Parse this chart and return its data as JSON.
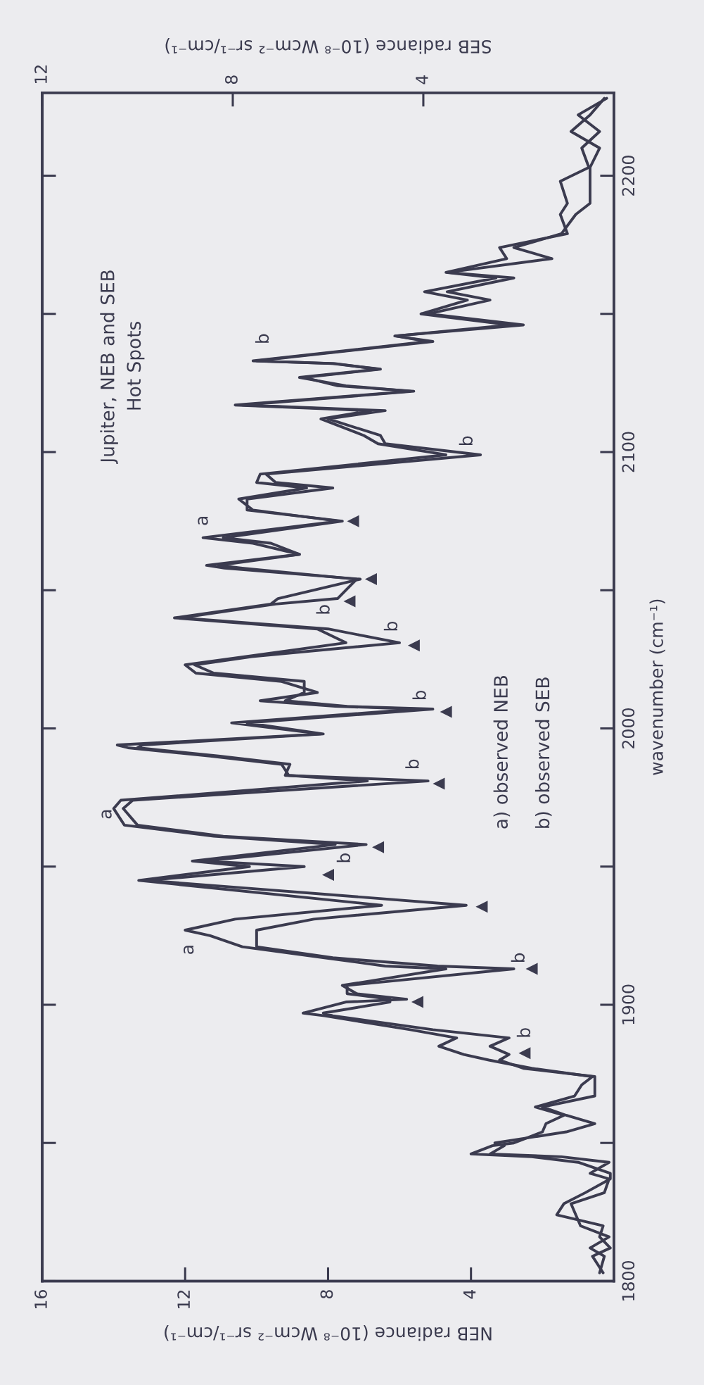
{
  "chart_data": {
    "type": "line",
    "orientation": "horizontal",
    "title": "Jupiter, NEB and SEB\nHot Spots",
    "xlabel": "NEB radiance (10⁻⁸ Wcm⁻² sr⁻¹/cm⁻¹)",
    "x2label": "SEB radiance (10⁻⁸ Wcm⁻² sr⁻¹/cm⁻¹)",
    "ylabel": "wavenumber (cm⁻¹)",
    "xlim": [
      16,
      0
    ],
    "xticks": [
      16,
      12,
      8,
      4
    ],
    "x2lim": [
      12,
      0
    ],
    "x2ticks": [
      12,
      8,
      4
    ],
    "ylim": [
      1800,
      2230
    ],
    "yticks": [
      1800,
      1900,
      2000,
      2100,
      2200
    ],
    "x": [
      1803,
      1809,
      1812,
      1816,
      1820,
      1824,
      1828,
      1832,
      1837,
      1839,
      1843,
      1845,
      1846,
      1849,
      1850,
      1854,
      1857,
      1860,
      1863,
      1867,
      1871,
      1874,
      1877,
      1880,
      1882,
      1885,
      1888,
      1891,
      1896,
      1897,
      1901,
      1902,
      1904,
      1907,
      1913,
      1914,
      1917,
      1921,
      1925,
      1927,
      1931,
      1936,
      1945,
      1950,
      1952,
      1958,
      1961,
      1965,
      1971,
      1974,
      1981,
      1983,
      1987,
      1990,
      1993,
      1994,
      1998,
      2002,
      2007,
      2008,
      2010,
      2013,
      2017,
      2020,
      2023,
      2026,
      2031,
      2036,
      2040,
      2045,
      2047,
      2054,
      2058,
      2059,
      2063,
      2067,
      2069,
      2075,
      2079,
      2083,
      2087,
      2089,
      2092,
      2099,
      2103,
      2106,
      2112,
      2115,
      2117,
      2122,
      2124,
      2127,
      2130,
      2132,
      2133,
      2140,
      2142,
      2146,
      2150,
      2155,
      2158,
      2163,
      2165,
      2170,
      2174,
      2179,
      2186,
      2190,
      2198,
      2203,
      2210,
      2216,
      2222,
      2228
    ],
    "series": [
      {
        "color": "#3b3b4f",
        "values": [
          0.3,
          0.6,
          0.1,
          0.4,
          0.3,
          1.6,
          1.4,
          0.8,
          0.1,
          0.1,
          1.0,
          2.3,
          4.0,
          3.4,
          2.8,
          2.0,
          1.9,
          1.4,
          2.2,
          1.1,
          0.9,
          0.6,
          2.3,
          3.5,
          4.2,
          4.9,
          4.4,
          5.7,
          8.1,
          8.7,
          7.5,
          5.8,
          7.2,
          7.6,
          4.7,
          6.4,
          8.1,
          10.4,
          11.3,
          12.0,
          10.6,
          6.5,
          13.3,
          10.2,
          11.8,
          7.8,
          11.2,
          13.7,
          14.0,
          13.8,
          6.9,
          9.1,
          9.3,
          11.3,
          13.6,
          13.9,
          8.2,
          10.7,
          5.5,
          7.8,
          9.9,
          8.3,
          9.3,
          11.7,
          12.0,
          10.3,
          7.5,
          8.3,
          12.3,
          9.6,
          9.4,
          7.1,
          10.9,
          11.4,
          8.8,
          10.1,
          11.5,
          7.7,
          10.1,
          10.5,
          8.6,
          10.0,
          9.9,
          4.7,
          6.6,
          7.0,
          8.2,
          6.8,
          10.6,
          5.7,
          7.5,
          8.8,
          6.6,
          7.8,
          10.1,
          5.2,
          6.1,
          2.9,
          5.4,
          4.1,
          5.3,
          3.3,
          4.7,
          3.0,
          3.2,
          1.3,
          1.5,
          1.3,
          1.5,
          0.7,
          0.9,
          0.4,
          1.0,
          0.2
        ]
      },
      {
        "color": "#3b3b4f",
        "axis": "x2",
        "values": [
          0.3,
          0.2,
          0.5,
          0.1,
          0.7,
          0.8,
          0.9,
          0.2,
          0.1,
          0.5,
          0.1,
          1.1,
          2.6,
          2.3,
          2.5,
          1.0,
          0.4,
          1.0,
          1.5,
          0.4,
          0.4,
          0.4,
          1.9,
          2.4,
          2.2,
          2.6,
          2.2,
          3.8,
          5.9,
          6.1,
          4.7,
          4.7,
          5.6,
          5.6,
          2.1,
          3.7,
          5.9,
          7.5,
          7.5,
          7.5,
          6.3,
          3.1,
          9.8,
          6.5,
          8.6,
          5.2,
          8.2,
          10.0,
          10.3,
          10.1,
          3.9,
          6.9,
          6.8,
          8.3,
          10.0,
          9.9,
          6.1,
          7.7,
          3.8,
          5.6,
          6.9,
          6.5,
          6.5,
          8.4,
          8.8,
          7.6,
          4.5,
          6.0,
          9.1,
          7.1,
          5.8,
          5.4,
          7.8,
          8.3,
          6.6,
          7.2,
          8.2,
          5.7,
          7.7,
          7.7,
          5.9,
          7.1,
          7.3,
          2.8,
          4.8,
          4.9,
          6.0,
          4.8,
          7.8,
          4.2,
          5.8,
          6.5,
          4.9,
          5.9,
          7.5,
          3.8,
          4.6,
          1.9,
          3.9,
          2.6,
          3.5,
          2.1,
          3.5,
          1.3,
          2.1,
          1.1,
          0.8,
          0.5,
          0.5,
          0.5,
          0.3,
          0.9,
          0.5,
          0.2
        ]
      },
      {
        "type": "scatter",
        "marker": "triangle",
        "color": "#3b3b4f",
        "x": [
          1882.5,
          1901,
          1913,
          1935.5,
          1947,
          1957,
          1980,
          2006,
          2030,
          2046,
          2054,
          2075
        ],
        "values": [
          2.5,
          5.5,
          2.3,
          3.7,
          8.0,
          6.6,
          4.9,
          4.7,
          5.6,
          7.4,
          6.8,
          7.3
        ]
      }
    ],
    "annotations": [
      "a) observed NEB",
      "b) observed SEB",
      "a",
      "a",
      "a",
      "b",
      "b",
      "b",
      "b",
      "b",
      "b",
      "b",
      "b",
      "b"
    ]
  }
}
